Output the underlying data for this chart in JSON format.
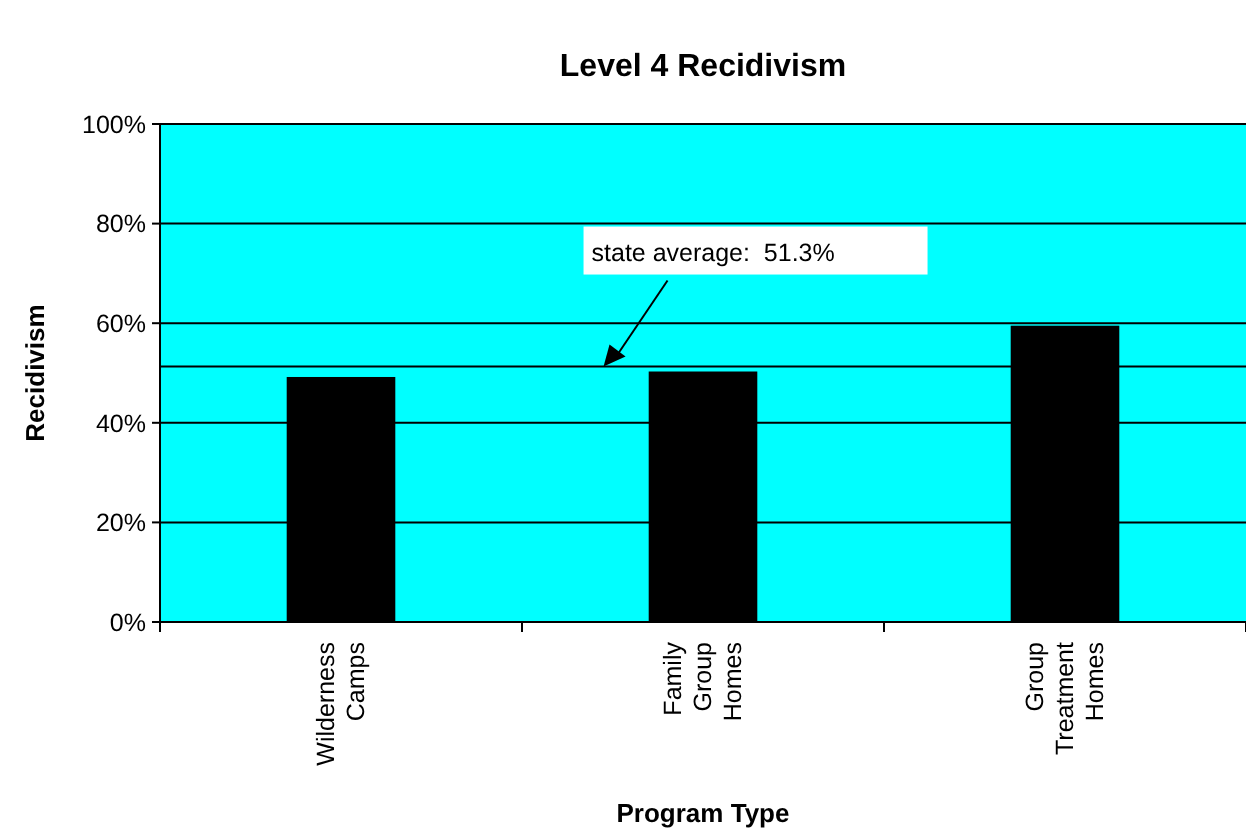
{
  "chart_data": {
    "type": "bar",
    "title": "Level 4 Recidivism",
    "xlabel": "Program Type",
    "ylabel": "Recidivism",
    "categories": [
      "Wilderness Camps",
      "Family Group Homes",
      "Group Treatment Homes"
    ],
    "values": [
      49.2,
      50.3,
      59.5
    ],
    "color": "#000000",
    "ylim": [
      0,
      100
    ],
    "yticks": [
      {
        "value": 0,
        "label": "0%"
      },
      {
        "value": 20,
        "label": "20%"
      },
      {
        "value": 40,
        "label": "40%"
      },
      {
        "value": 60,
        "label": "60%"
      },
      {
        "value": 80,
        "label": "80%"
      },
      {
        "value": 100,
        "label": "100%"
      }
    ],
    "grid": "y",
    "ref_lines": [
      {
        "axis": "y",
        "value": 51.3,
        "label": "state average:  51.3%",
        "color": "#000000"
      }
    ]
  }
}
